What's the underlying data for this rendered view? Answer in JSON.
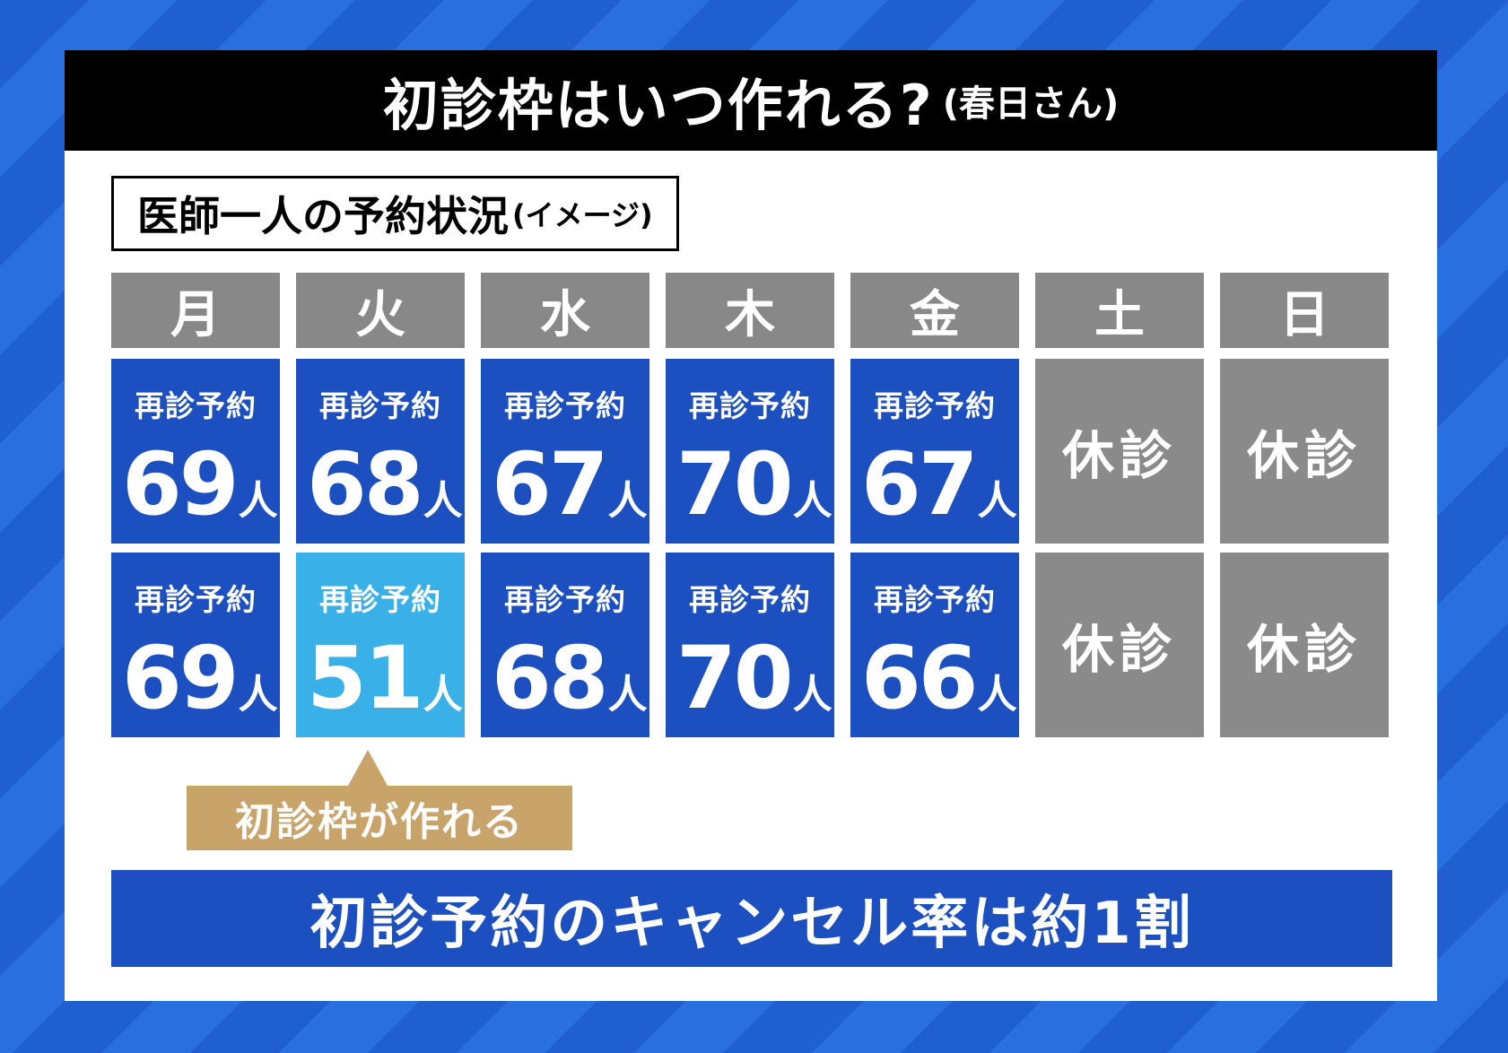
{
  "title": {
    "main": "初診枠はいつ作れる?",
    "sub": "(春日さん)"
  },
  "subheading": {
    "main": "医師一人の予約状況",
    "sub": "(イメージ)"
  },
  "days": [
    "月",
    "火",
    "水",
    "木",
    "金",
    "土",
    "日"
  ],
  "cell_label": "再診予約",
  "unit": "人",
  "closed_label": "休診",
  "weeks": [
    {
      "counts": [
        "69",
        "68",
        "67",
        "70",
        "67",
        null,
        null
      ]
    },
    {
      "counts": [
        "69",
        "51",
        "68",
        "70",
        "66",
        null,
        null
      ]
    }
  ],
  "highlight": {
    "week": 1,
    "day": 1,
    "color": "#3ab0e8"
  },
  "callout": "初診枠が作れる",
  "footer": "初診予約のキャンセル率は約1割",
  "colors": {
    "booked": "#1c4fbf",
    "highlight": "#3ab0e8",
    "closed": "#8a8a8a",
    "header": "#888888",
    "callout": "#c8a36a",
    "title_bar": "#000000"
  }
}
